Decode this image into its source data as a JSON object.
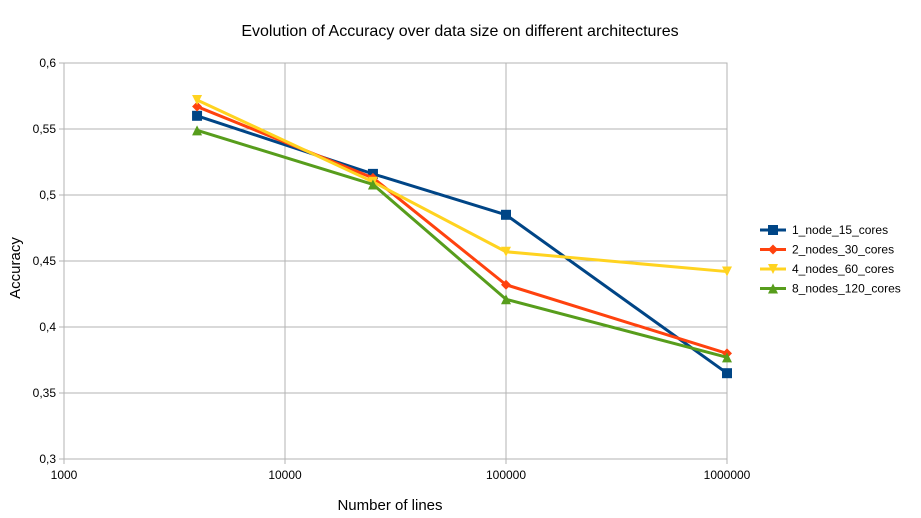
{
  "chart_data": {
    "type": "line",
    "title": "Evolution of Accuracy over data size on different architectures",
    "xlabel": "Number of lines",
    "ylabel": "Accuracy",
    "x_scale": "log",
    "xlim": [
      1000,
      1000000
    ],
    "ylim": [
      0.3,
      0.6
    ],
    "x_ticks": [
      1000,
      10000,
      100000,
      1000000
    ],
    "x_tick_labels": [
      "1000",
      "10000",
      "100000",
      "1000000"
    ],
    "y_ticks": [
      0.3,
      0.35,
      0.4,
      0.45,
      0.5,
      0.55,
      0.6
    ],
    "y_tick_labels": [
      "0,3",
      "0,35",
      "0,4",
      "0,45",
      "0,5",
      "0,55",
      "0,6"
    ],
    "grid": true,
    "legend_position": "right",
    "x": [
      4000,
      25000,
      100000,
      1000000
    ],
    "series": [
      {
        "name": "1_node_15_cores",
        "color": "#004586",
        "marker": "square",
        "values": [
          0.56,
          0.516,
          0.485,
          0.365
        ]
      },
      {
        "name": "2_nodes_30_cores",
        "color": "#ff420e",
        "marker": "diamond",
        "values": [
          0.567,
          0.513,
          0.432,
          0.38
        ]
      },
      {
        "name": "4_nodes_60_cores",
        "color": "#ffd320",
        "marker": "triangle-down",
        "values": [
          0.572,
          0.51,
          0.457,
          0.442
        ]
      },
      {
        "name": "8_nodes_120_cores",
        "color": "#579d1c",
        "marker": "triangle-up",
        "values": [
          0.549,
          0.508,
          0.421,
          0.377
        ]
      }
    ]
  }
}
